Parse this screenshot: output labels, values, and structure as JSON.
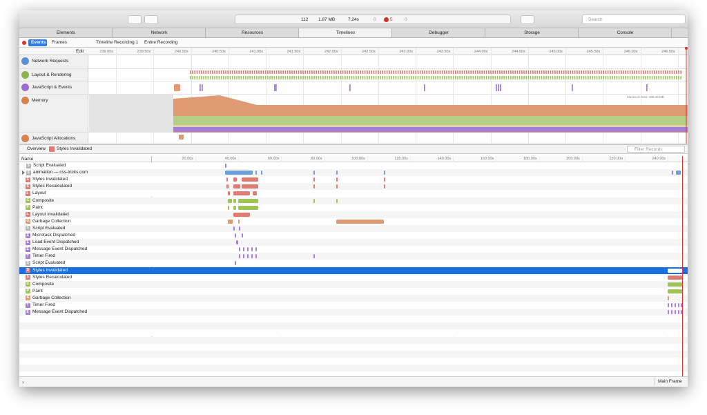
{
  "toolbar": {
    "resources": "112",
    "size": "1.87 MB",
    "time": "7.24s",
    "warnings": "0",
    "errors": "5",
    "logs": "0",
    "search": "Search"
  },
  "tabs": [
    "Elements",
    "Network",
    "Resources",
    "Timelines",
    "Debugger",
    "Storage",
    "Console"
  ],
  "nav": {
    "events": "Events",
    "frames": "Frames",
    "breadcrumb": [
      "Timeline Recording 1",
      "Entire Recording"
    ]
  },
  "overview": {
    "edit": "Edit",
    "ruler": [
      "239.00s",
      "239.50s",
      "240.00s",
      "240.50s",
      "241.00s",
      "241.50s",
      "242.00s",
      "242.50s",
      "243.00s",
      "243.50s",
      "244.00s",
      "244.50s",
      "245.00s",
      "245.50s",
      "246.00s",
      "246.50s"
    ],
    "tracks": [
      "Network Requests",
      "Layout & Rendering",
      "JavaScript & Events",
      "Memory",
      "JavaScript Allocations"
    ],
    "memory_note": "Maximum Size: 308.46 MB"
  },
  "details": {
    "breadcrumb": [
      "Overview",
      "Styles Invalidated"
    ],
    "filter": "Filter Records"
  },
  "records": {
    "name_header": "Name",
    "ruler": [
      "20.00s",
      "40.00s",
      "60.00s",
      "80.00s",
      "100.00s",
      "120.00s",
      "140.00s",
      "160.00s",
      "180.00s",
      "200.00s",
      "220.00s",
      "240.00s"
    ],
    "rows": [
      {
        "icon": "S",
        "name": "Script Evaluated"
      },
      {
        "icon": "S",
        "name": "animation — css-tricks.com"
      },
      {
        "icon": "S",
        "name": "Styles Invalidated"
      },
      {
        "icon": "S",
        "name": "Styles Recalculated"
      },
      {
        "icon": "L",
        "name": "Layout"
      },
      {
        "icon": "C",
        "name": "Composite"
      },
      {
        "icon": "P",
        "name": "Paint"
      },
      {
        "icon": "L",
        "name": "Layout Invalidated"
      },
      {
        "icon": "G",
        "name": "Garbage Collection"
      },
      {
        "icon": "S",
        "name": "Script Evaluated"
      },
      {
        "icon": "E",
        "name": "Microtask Dispatched"
      },
      {
        "icon": "E",
        "name": "Load Event Dispatched"
      },
      {
        "icon": "E",
        "name": "Message Event Dispatched"
      },
      {
        "icon": "T",
        "name": "Timer Fired"
      },
      {
        "icon": "S",
        "name": "Script Evaluated"
      },
      {
        "icon": "S",
        "name": "Styles Invalidated"
      },
      {
        "icon": "S",
        "name": "Styles Recalculated"
      },
      {
        "icon": "C",
        "name": "Composite"
      },
      {
        "icon": "P",
        "name": "Paint"
      },
      {
        "icon": "G",
        "name": "Garbage Collection"
      },
      {
        "icon": "T",
        "name": "Timer Fired"
      },
      {
        "icon": "E",
        "name": "Message Event Dispatched"
      }
    ]
  },
  "footer": {
    "frame": "Main Frame"
  }
}
